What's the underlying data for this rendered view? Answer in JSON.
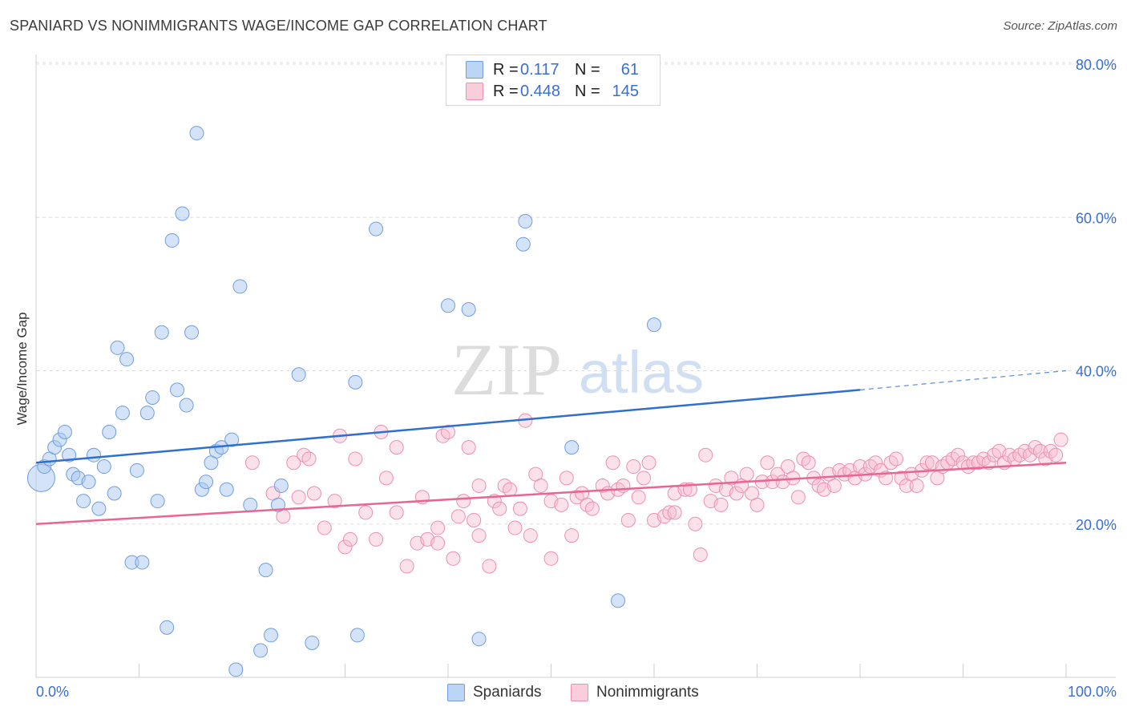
{
  "title": "SPANIARD VS NONIMMIGRANTS WAGE/INCOME GAP CORRELATION CHART",
  "source": "Source: ZipAtlas.com",
  "watermark": {
    "zip": "ZIP",
    "atlas": "atlas"
  },
  "legend": {
    "r_label": "R =",
    "n_label": "N =",
    "rows": [
      {
        "r": "0.117",
        "n": "61"
      },
      {
        "r": "0.448",
        "n": "145"
      }
    ]
  },
  "colors": {
    "spaniards_fill": "#a9c8f2",
    "spaniards_stroke": "#6f9ee0",
    "spaniards_line": "#2f6fd0",
    "nonimmigrants_fill": "#f7bcd0",
    "nonimmigrants_stroke": "#ee8fb0",
    "nonimmigrants_line": "#e8668f",
    "tick_label": "#3a6fd0"
  },
  "chart_data": {
    "type": "scatter",
    "xlabel": "",
    "ylabel": "Wage/Income Gap",
    "xlim": [
      0,
      100
    ],
    "ylim": [
      0,
      80
    ],
    "x_tick_labels": [
      "0.0%",
      "100.0%"
    ],
    "y_ticks": [
      20,
      40,
      60,
      80
    ],
    "y_tick_labels": [
      "20.0%",
      "40.0%",
      "60.0%",
      "80.0%"
    ],
    "grid": true,
    "series": [
      {
        "name": "Spaniards",
        "r": 0.117,
        "n": 61,
        "trend": {
          "x0": 0,
          "y0": 28.0,
          "x1": 80,
          "y1": 37.5,
          "dashed_to": 100,
          "dashed_y": 40.0
        },
        "points": [
          [
            0.5,
            26
          ],
          [
            0.8,
            27.5
          ],
          [
            1.3,
            28.5
          ],
          [
            1.8,
            30
          ],
          [
            2.3,
            31
          ],
          [
            2.8,
            32
          ],
          [
            3.2,
            29
          ],
          [
            3.6,
            26.5
          ],
          [
            4.1,
            26
          ],
          [
            4.6,
            23
          ],
          [
            5.1,
            25.5
          ],
          [
            5.6,
            29
          ],
          [
            6.1,
            22
          ],
          [
            6.6,
            27.5
          ],
          [
            7.1,
            32
          ],
          [
            7.6,
            24
          ],
          [
            7.9,
            43
          ],
          [
            8.4,
            34.5
          ],
          [
            8.8,
            41.5
          ],
          [
            9.3,
            15
          ],
          [
            9.8,
            27
          ],
          [
            10.3,
            15
          ],
          [
            10.8,
            34.5
          ],
          [
            11.3,
            36.5
          ],
          [
            11.8,
            23
          ],
          [
            12.2,
            45
          ],
          [
            12.7,
            6.5
          ],
          [
            13.2,
            57
          ],
          [
            13.7,
            37.5
          ],
          [
            14.2,
            60.5
          ],
          [
            14.6,
            35.5
          ],
          [
            15.1,
            45
          ],
          [
            15.6,
            71
          ],
          [
            16.1,
            24.5
          ],
          [
            16.5,
            25.5
          ],
          [
            17.0,
            28
          ],
          [
            17.5,
            29.5
          ],
          [
            18.0,
            30
          ],
          [
            18.5,
            24.5
          ],
          [
            19.0,
            31
          ],
          [
            19.4,
            1
          ],
          [
            19.8,
            51
          ],
          [
            20.8,
            22.5
          ],
          [
            21.8,
            3.5
          ],
          [
            22.3,
            14
          ],
          [
            22.8,
            5.5
          ],
          [
            23.5,
            22.5
          ],
          [
            23.8,
            25
          ],
          [
            25.5,
            39.5
          ],
          [
            26.8,
            4.5
          ],
          [
            31.0,
            38.5
          ],
          [
            31.2,
            5.5
          ],
          [
            33.0,
            58.5
          ],
          [
            40.0,
            48.5
          ],
          [
            42.0,
            48
          ],
          [
            43.0,
            5
          ],
          [
            47.3,
            56.5
          ],
          [
            47.5,
            59.5
          ],
          [
            52.0,
            30
          ],
          [
            56.5,
            10
          ],
          [
            60.0,
            46
          ]
        ]
      },
      {
        "name": "Nonimmigrants",
        "r": 0.448,
        "n": 145,
        "trend": {
          "x0": 0,
          "y0": 20.0,
          "x1": 100,
          "y1": 28.0
        },
        "points": [
          [
            21,
            28
          ],
          [
            23,
            24
          ],
          [
            24,
            21
          ],
          [
            25,
            28
          ],
          [
            25.5,
            23.5
          ],
          [
            26,
            29
          ],
          [
            26.5,
            28.5
          ],
          [
            27,
            24
          ],
          [
            28,
            19.5
          ],
          [
            29,
            23
          ],
          [
            29.5,
            31.5
          ],
          [
            30,
            17
          ],
          [
            30.5,
            18
          ],
          [
            31,
            28.5
          ],
          [
            32,
            21.5
          ],
          [
            33,
            18
          ],
          [
            33.5,
            32
          ],
          [
            34,
            26
          ],
          [
            35,
            30
          ],
          [
            35,
            21.5
          ],
          [
            36,
            14.5
          ],
          [
            37,
            17.5
          ],
          [
            37.5,
            23.5
          ],
          [
            38,
            18
          ],
          [
            39,
            17.5
          ],
          [
            39,
            19.5
          ],
          [
            39.5,
            31.5
          ],
          [
            40,
            32
          ],
          [
            40.5,
            15.5
          ],
          [
            41,
            21
          ],
          [
            41.5,
            23
          ],
          [
            42,
            30
          ],
          [
            42.5,
            20.5
          ],
          [
            43,
            25
          ],
          [
            43,
            18.5
          ],
          [
            44,
            14.5
          ],
          [
            44.5,
            23
          ],
          [
            45,
            22
          ],
          [
            45.5,
            25
          ],
          [
            46,
            24.5
          ],
          [
            46.5,
            19.5
          ],
          [
            47,
            22
          ],
          [
            47.5,
            33.5
          ],
          [
            48,
            18.5
          ],
          [
            48.5,
            26.5
          ],
          [
            49,
            25
          ],
          [
            50,
            23
          ],
          [
            50,
            15.5
          ],
          [
            51,
            22.5
          ],
          [
            51.5,
            26
          ],
          [
            52,
            18.5
          ],
          [
            52.5,
            23.5
          ],
          [
            53,
            24
          ],
          [
            53.5,
            22.5
          ],
          [
            54,
            22
          ],
          [
            55,
            25
          ],
          [
            55.5,
            24
          ],
          [
            56,
            28
          ],
          [
            56.5,
            24.5
          ],
          [
            57,
            25
          ],
          [
            57.5,
            20.5
          ],
          [
            58,
            27.5
          ],
          [
            58.5,
            23.5
          ],
          [
            59,
            26
          ],
          [
            59.5,
            28
          ],
          [
            60,
            20.5
          ],
          [
            61,
            21
          ],
          [
            61.5,
            21.5
          ],
          [
            62,
            24
          ],
          [
            62,
            21.5
          ],
          [
            63,
            24.5
          ],
          [
            63.5,
            24.5
          ],
          [
            64,
            20
          ],
          [
            64.5,
            16
          ],
          [
            65,
            29
          ],
          [
            65.5,
            23
          ],
          [
            66,
            25
          ],
          [
            66.5,
            22.5
          ],
          [
            67,
            24.5
          ],
          [
            67.5,
            26
          ],
          [
            68,
            24
          ],
          [
            68.5,
            25
          ],
          [
            69,
            26.5
          ],
          [
            69.5,
            24
          ],
          [
            70,
            22.5
          ],
          [
            70.5,
            25.5
          ],
          [
            71,
            28
          ],
          [
            71.5,
            25.5
          ],
          [
            72,
            26.5
          ],
          [
            72.5,
            25.5
          ],
          [
            73,
            27.5
          ],
          [
            73.5,
            26
          ],
          [
            74,
            23.5
          ],
          [
            74.5,
            28.5
          ],
          [
            75,
            28
          ],
          [
            75.5,
            26
          ],
          [
            76,
            25
          ],
          [
            76.5,
            24.5
          ],
          [
            77,
            26.5
          ],
          [
            77.5,
            25
          ],
          [
            78,
            27
          ],
          [
            78.5,
            26.5
          ],
          [
            79,
            27
          ],
          [
            79.5,
            26
          ],
          [
            80,
            27.5
          ],
          [
            80.5,
            26.5
          ],
          [
            81,
            27.5
          ],
          [
            81.5,
            28
          ],
          [
            82,
            27
          ],
          [
            82.5,
            26
          ],
          [
            83,
            28
          ],
          [
            83.5,
            28.5
          ],
          [
            84,
            26
          ],
          [
            84.5,
            25
          ],
          [
            85,
            26.5
          ],
          [
            85.5,
            25
          ],
          [
            86,
            27
          ],
          [
            86.5,
            28
          ],
          [
            87,
            28
          ],
          [
            87.5,
            26
          ],
          [
            88,
            27.5
          ],
          [
            88.5,
            28
          ],
          [
            89,
            28.5
          ],
          [
            89.5,
            29
          ],
          [
            90,
            28
          ],
          [
            90.5,
            27.5
          ],
          [
            91,
            28
          ],
          [
            91.5,
            28
          ],
          [
            92,
            28.5
          ],
          [
            92.5,
            28
          ],
          [
            93,
            29
          ],
          [
            93.5,
            29.5
          ],
          [
            94,
            28
          ],
          [
            94.5,
            29
          ],
          [
            95,
            28.5
          ],
          [
            95.5,
            29
          ],
          [
            96,
            29.5
          ],
          [
            96.5,
            29
          ],
          [
            97,
            30
          ],
          [
            97.5,
            29.5
          ],
          [
            98,
            28.5
          ],
          [
            98.5,
            29.5
          ],
          [
            99,
            29
          ],
          [
            99.5,
            31
          ]
        ]
      }
    ]
  },
  "bottom_legend": [
    "Spaniards",
    "Nonimmigrants"
  ]
}
